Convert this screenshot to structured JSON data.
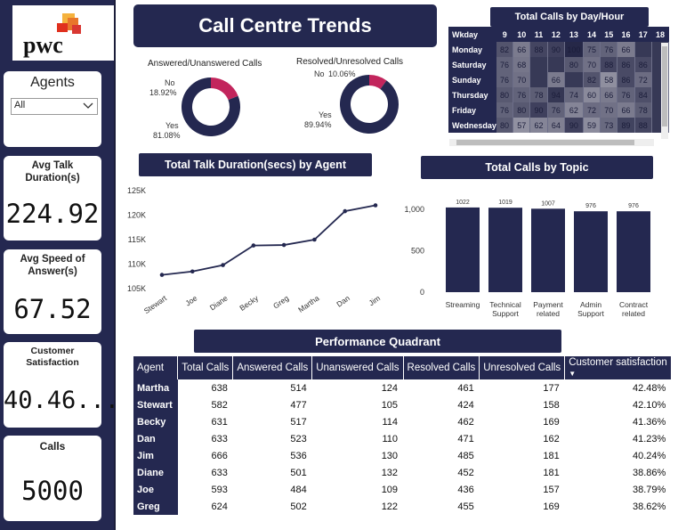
{
  "sidebar": {
    "logo_text": "pwc",
    "agents_filter": {
      "label": "Agents",
      "selected": "All"
    },
    "kpis": [
      {
        "label": "Avg Talk Duration(s)",
        "value": "224.92"
      },
      {
        "label": "Avg Speed of Answer(s)",
        "value": "67.52"
      },
      {
        "label": "Customer Satisfaction",
        "value": "40.46..."
      },
      {
        "label": "Calls",
        "value": "5000"
      }
    ]
  },
  "header": {
    "title": "Call Centre Trends"
  },
  "donuts": [
    {
      "title": "Answered/Unanswered Calls",
      "slices": [
        {
          "label": "No",
          "pct": "18.92%",
          "value": 18.92,
          "color": "#c2255c"
        },
        {
          "label": "Yes",
          "pct": "81.08%",
          "value": 81.08,
          "color": "#242850"
        }
      ]
    },
    {
      "title": "Resolved/Unresolved Calls",
      "slices": [
        {
          "label": "No",
          "pct": "10.06%",
          "value": 10.06,
          "color": "#c2255c"
        },
        {
          "label": "Yes",
          "pct": "89.94%",
          "value": 89.94,
          "color": "#242850"
        }
      ]
    }
  ],
  "heatmap": {
    "title": "Total Calls by Day/Hour",
    "corner": "Wkday",
    "hours": [
      "9",
      "10",
      "11",
      "12",
      "13",
      "14",
      "15",
      "16",
      "17",
      "18"
    ],
    "rows": [
      {
        "day": "Monday",
        "values": [
          "82",
          "66",
          "88",
          "90",
          "100",
          "75",
          "76",
          "66",
          "",
          ""
        ]
      },
      {
        "day": "Saturday",
        "values": [
          "76",
          "68",
          "",
          "",
          "80",
          "70",
          "88",
          "86",
          "86",
          ""
        ]
      },
      {
        "day": "Sunday",
        "values": [
          "76",
          "70",
          "",
          "66",
          "",
          "82",
          "58",
          "86",
          "72",
          ""
        ]
      },
      {
        "day": "Thursday",
        "values": [
          "80",
          "76",
          "78",
          "94",
          "74",
          "60",
          "66",
          "76",
          "84",
          ""
        ]
      },
      {
        "day": "Friday",
        "values": [
          "76",
          "80",
          "90",
          "76",
          "62",
          "72",
          "70",
          "66",
          "78",
          ""
        ]
      },
      {
        "day": "Wednesday",
        "values": [
          "80",
          "57",
          "62",
          "64",
          "90",
          "59",
          "73",
          "89",
          "88",
          ""
        ]
      }
    ]
  },
  "line_chart": {
    "title": "Total Talk Duration(secs) by Agent",
    "chart_data": {
      "type": "line",
      "categories": [
        "Stewart",
        "Joe",
        "Diane",
        "Becky",
        "Greg",
        "Martha",
        "Dan",
        "Jim"
      ],
      "values": [
        107800,
        108500,
        109800,
        113800,
        113900,
        115000,
        120800,
        122000
      ],
      "yticks": [
        "105K",
        "110K",
        "115K",
        "120K",
        "125K"
      ],
      "ylim": [
        105000,
        125000
      ]
    }
  },
  "bar_chart": {
    "title": "Total Calls by Topic",
    "chart_data": {
      "type": "bar",
      "categories": [
        "Streaming",
        "Technical Support",
        "Payment related",
        "Admin Support",
        "Contract related"
      ],
      "values": [
        1022,
        1019,
        1007,
        976,
        976
      ],
      "yticks": [
        "0",
        "500",
        "1,000"
      ],
      "ylim": [
        0,
        1150
      ]
    }
  },
  "performance": {
    "title": "Performance Quadrant",
    "columns": [
      "Agent",
      "Total Calls",
      "Answered Calls",
      "Unanswered Calls",
      "Resolved Calls",
      "Unresolved Calls",
      "Customer satisfaction"
    ],
    "sort_indicator": "▼",
    "rows": [
      [
        "Martha",
        "638",
        "514",
        "124",
        "461",
        "177",
        "42.48%"
      ],
      [
        "Stewart",
        "582",
        "477",
        "105",
        "424",
        "158",
        "42.10%"
      ],
      [
        "Becky",
        "631",
        "517",
        "114",
        "462",
        "169",
        "41.36%"
      ],
      [
        "Dan",
        "633",
        "523",
        "110",
        "471",
        "162",
        "41.23%"
      ],
      [
        "Jim",
        "666",
        "536",
        "130",
        "485",
        "181",
        "40.24%"
      ],
      [
        "Diane",
        "633",
        "501",
        "132",
        "452",
        "181",
        "38.86%"
      ],
      [
        "Joe",
        "593",
        "484",
        "109",
        "436",
        "157",
        "38.79%"
      ],
      [
        "Greg",
        "624",
        "502",
        "122",
        "455",
        "169",
        "38.62%"
      ]
    ]
  }
}
